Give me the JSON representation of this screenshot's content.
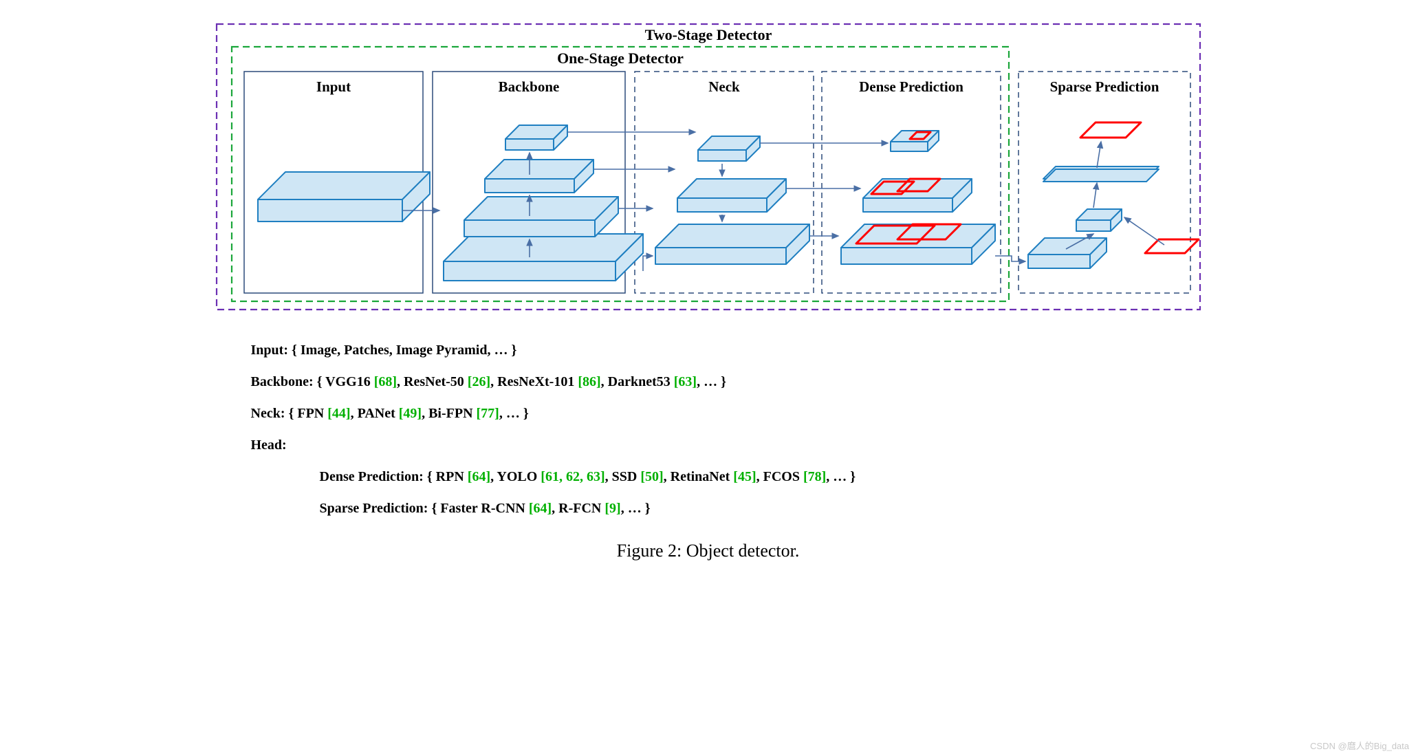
{
  "diagram": {
    "type": "architecture-diagram",
    "background_color": "#ffffff",
    "outer_box": {
      "label": "Two-Stage Detector",
      "stroke": "#6b2fb3",
      "dash": "10,6",
      "stroke_width": 2,
      "title_fontsize": 22,
      "title_weight": "bold"
    },
    "inner_box": {
      "label": "One-Stage Detector",
      "stroke": "#1aa63a",
      "dash": "10,6",
      "stroke_width": 2,
      "title_fontsize": 22,
      "title_weight": "bold"
    },
    "panel_style": {
      "solid_stroke": "#2b4a7a",
      "dashed_stroke": "#2b4a7a",
      "dash": "8,6",
      "stroke_width": 1.5,
      "label_fontsize": 21,
      "label_weight": "bold"
    },
    "slab_style": {
      "fill": "#cfe6f5",
      "stroke": "#1f7fc1",
      "stroke_width": 2,
      "depth": 14
    },
    "arrow_style": {
      "stroke": "#4a6fa5",
      "stroke_width": 1.6
    },
    "bbox_style": {
      "stroke": "#ff0000",
      "stroke_width": 3
    },
    "panels": {
      "input": {
        "label": "Input",
        "border": "solid"
      },
      "backbone": {
        "label": "Backbone",
        "border": "solid"
      },
      "neck": {
        "label": "Neck",
        "border": "dashed"
      },
      "dense": {
        "label": "Dense Prediction",
        "border": "dashed"
      },
      "sparse": {
        "label": "Sparse Prediction",
        "border": "dashed"
      }
    }
  },
  "legend": {
    "fontsize": 20,
    "ref_color": "#00b000",
    "input": {
      "label": "Input:",
      "text": "{ Image, Patches, Image Pyramid, … }"
    },
    "backbone": {
      "label": "Backbone:",
      "items": [
        {
          "name": "VGG16",
          "ref": "[68]"
        },
        {
          "name": "ResNet-50",
          "ref": "[26]"
        },
        {
          "name": "ResNeXt-101",
          "ref": "[86]"
        },
        {
          "name": "Darknet53",
          "ref": "[63]"
        }
      ]
    },
    "neck": {
      "label": "Neck:",
      "items": [
        {
          "name": "FPN",
          "ref": "[44]"
        },
        {
          "name": "PANet",
          "ref": "[49]"
        },
        {
          "name": "Bi-FPN",
          "ref": "[77]"
        }
      ]
    },
    "head": {
      "label": "Head:"
    },
    "dense": {
      "label": "Dense Prediction:",
      "items": [
        {
          "name": "RPN",
          "ref": "[64]"
        },
        {
          "name": "YOLO",
          "ref": "[61, 62, 63]"
        },
        {
          "name": "SSD",
          "ref": "[50]"
        },
        {
          "name": "RetinaNet",
          "ref": "[45]"
        },
        {
          "name": "FCOS",
          "ref": "[78]"
        }
      ]
    },
    "sparse": {
      "label": "Sparse Prediction:",
      "items": [
        {
          "name": "Faster R-CNN",
          "ref": "[64]"
        },
        {
          "name": "R-FCN",
          "ref": "[9]"
        }
      ]
    }
  },
  "caption": "Figure 2: Object detector.",
  "watermark": "CSDN @麿人的Big_data"
}
